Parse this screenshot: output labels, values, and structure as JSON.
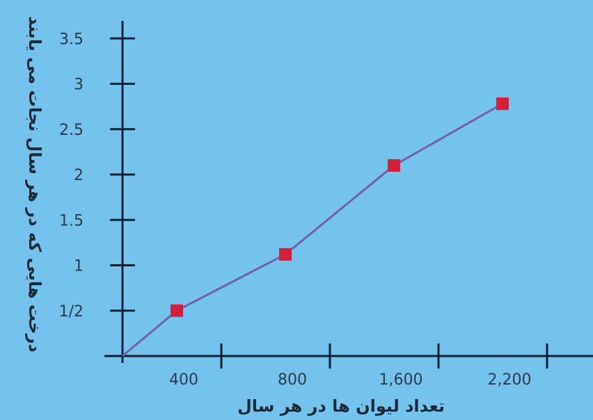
{
  "chart_data": {
    "type": "line",
    "title": "",
    "xlabel": "تعداد لیوان ها در هر سال",
    "ylabel": "درخت هایی که در هر سال نجات می یابند",
    "x_ticks": [
      {
        "label": "400",
        "pos": 0.5
      },
      {
        "label": "800",
        "pos": 1.5
      },
      {
        "label": "1,600",
        "pos": 2.5
      },
      {
        "label": "2,200",
        "pos": 3.5
      }
    ],
    "x_separators": [
      1,
      2,
      3,
      4
    ],
    "xlim": [
      -0.05,
      4.05
    ],
    "y_ticks": [
      {
        "label": "1/2",
        "value": 0.5
      },
      {
        "label": "1",
        "value": 1
      },
      {
        "label": "1.5",
        "value": 1.5
      },
      {
        "label": "2",
        "value": 2
      },
      {
        "label": "2.5",
        "value": 2.5
      },
      {
        "label": "3",
        "value": 3
      },
      {
        "label": "3.5",
        "value": 3.5
      }
    ],
    "ylim": [
      0,
      3.6
    ],
    "series": [
      {
        "points": [
          {
            "x": 0,
            "y": 0,
            "marker": false
          },
          {
            "x": 0.5,
            "y": 0.5,
            "marker": true
          },
          {
            "x": 1.5,
            "y": 1.12,
            "marker": true
          },
          {
            "x": 2.5,
            "y": 2.1,
            "marker": true
          },
          {
            "x": 3.5,
            "y": 2.78,
            "marker": true
          }
        ],
        "line_color": "#7263a8",
        "marker_color": "#d31f3a"
      }
    ],
    "grid": false,
    "background": "#74c3ee",
    "axis_color": "#0f2233"
  }
}
